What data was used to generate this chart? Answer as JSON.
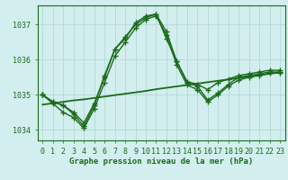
{
  "xlabel": "Graphe pression niveau de la mer (hPa)",
  "hours": [
    0,
    1,
    2,
    3,
    4,
    5,
    6,
    7,
    8,
    9,
    10,
    11,
    12,
    13,
    14,
    15,
    16,
    17,
    18,
    19,
    20,
    21,
    22,
    23
  ],
  "line_main": [
    1035.0,
    1034.8,
    1034.7,
    1034.45,
    1034.1,
    1034.7,
    1035.55,
    1036.3,
    1036.6,
    1037.05,
    1037.25,
    1037.3,
    1036.6,
    1035.95,
    1035.35,
    1035.25,
    1034.85,
    1035.05,
    1035.3,
    1035.5,
    1035.55,
    1035.6,
    1035.65,
    1035.65
  ],
  "line_upper": [
    1035.0,
    1034.8,
    1034.7,
    1034.5,
    1034.2,
    1034.75,
    1035.5,
    1036.3,
    1036.65,
    1037.0,
    1037.2,
    1037.3,
    1036.8,
    1035.95,
    1035.38,
    1035.3,
    1035.15,
    1035.35,
    1035.45,
    1035.55,
    1035.6,
    1035.65,
    1035.7,
    1035.7
  ],
  "line_lower": [
    1035.0,
    1034.75,
    1034.5,
    1034.35,
    1034.05,
    1034.6,
    1035.35,
    1036.1,
    1036.5,
    1036.9,
    1037.15,
    1037.25,
    1036.7,
    1035.85,
    1035.28,
    1035.15,
    1034.8,
    1035.0,
    1035.25,
    1035.42,
    1035.5,
    1035.55,
    1035.62,
    1035.62
  ],
  "line_trend": [
    1034.72,
    1034.76,
    1034.8,
    1034.84,
    1034.87,
    1034.91,
    1034.95,
    1034.99,
    1035.03,
    1035.07,
    1035.11,
    1035.16,
    1035.2,
    1035.24,
    1035.28,
    1035.32,
    1035.36,
    1035.4,
    1035.44,
    1035.48,
    1035.52,
    1035.56,
    1035.6,
    1035.64
  ],
  "ylim": [
    1033.7,
    1037.55
  ],
  "yticks": [
    1034,
    1035,
    1036,
    1037
  ],
  "bg_color": "#d2eeee",
  "line_color": "#1a6b1a",
  "grid_color": "#b0d4d4",
  "text_color": "#1a6b1a",
  "label_fontsize": 6.5,
  "tick_fontsize": 6,
  "linewidth": 1.0,
  "marker": "+",
  "markersize": 4
}
